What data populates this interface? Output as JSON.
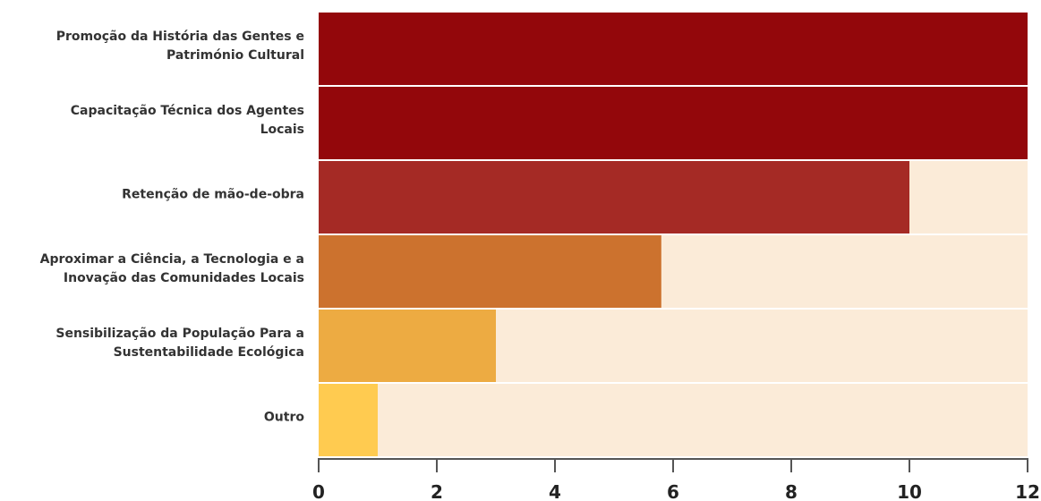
{
  "chart_data": {
    "type": "barh",
    "categories": [
      "Promoção da História das Gentes e\nPatrimónio Cultural",
      "Capacitação Técnica dos Agentes\nLocais",
      "Retenção de mão-de-obra",
      "Aproximar a Ciência, a Tecnologia e a\nInovação das Comunidades Locais",
      "Sensibilização da População Para a\nSustentabilidade Ecológica",
      "Outro"
    ],
    "values": [
      12,
      12,
      10,
      5.8,
      3,
      1
    ],
    "colors": [
      "#93070b",
      "#93070b",
      "#a52a25",
      "#cc722e",
      "#edab42",
      "#ffcb50"
    ],
    "background": "#fbebd8",
    "xlim": [
      0,
      12
    ],
    "xticks": [
      0,
      2,
      4,
      6,
      8,
      10,
      12
    ]
  }
}
